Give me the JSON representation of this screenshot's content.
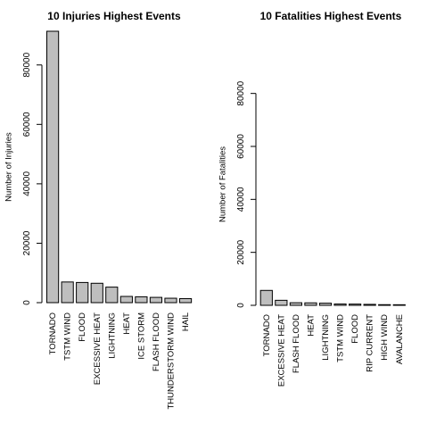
{
  "chart_data": [
    {
      "type": "bar",
      "title": "10 Injuries Highest Events",
      "xlabel": "",
      "ylabel": "Number of Injuries",
      "ylim": [
        0,
        91346
      ],
      "yticks": [
        0,
        20000,
        40000,
        60000,
        80000
      ],
      "grid": false,
      "bar_color": "#bebebe",
      "categories": [
        "TORNADO",
        "TSTM WIND",
        "FLOOD",
        "EXCESSIVE HEAT",
        "LIGHTNING",
        "HEAT",
        "ICE STORM",
        "FLASH FLOOD",
        "THUNDERSTORM WIND",
        "HAIL"
      ],
      "values": [
        91346,
        6957,
        6789,
        6525,
        5230,
        2100,
        1975,
        1777,
        1488,
        1361
      ]
    },
    {
      "type": "bar",
      "title": "10 Fatalities Highest Events",
      "xlabel": "",
      "ylabel": "Number of Fatalities",
      "ylim": [
        0,
        91346
      ],
      "yticks": [
        0,
        20000,
        40000,
        60000,
        80000
      ],
      "grid": false,
      "bar_color": "#bebebe",
      "categories": [
        "TORNADO",
        "EXCESSIVE HEAT",
        "FLASH FLOOD",
        "HEAT",
        "LIGHTNING",
        "TSTM WIND",
        "FLOOD",
        "RIP CURRENT",
        "HIGH WIND",
        "AVALANCHE"
      ],
      "values": [
        5633,
        1903,
        978,
        937,
        816,
        504,
        470,
        368,
        248,
        224
      ]
    }
  ]
}
